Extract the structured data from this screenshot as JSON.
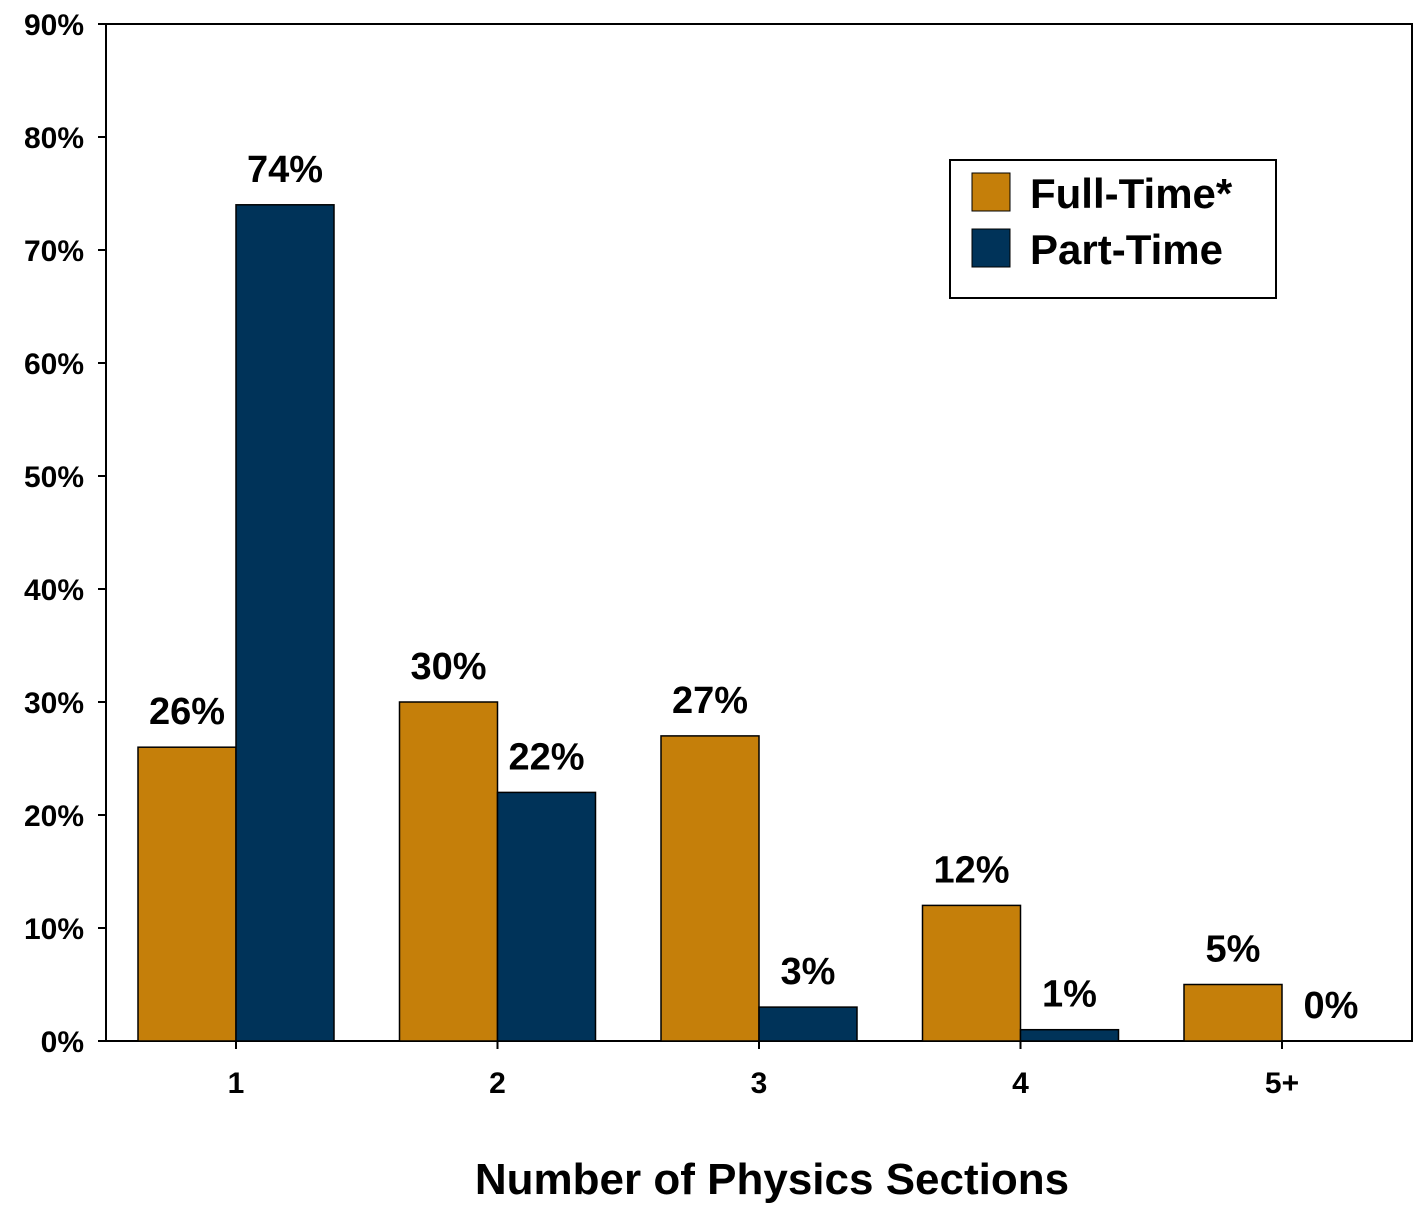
{
  "chart_data": {
    "type": "bar",
    "title": "",
    "xlabel": "Number of Physics Sections",
    "ylabel": "",
    "ylim": [
      0,
      90
    ],
    "y_ticks": [
      0,
      10,
      20,
      30,
      40,
      50,
      60,
      70,
      80,
      90
    ],
    "y_tick_suffix": "%",
    "categories": [
      "1",
      "2",
      "3",
      "4",
      "5+"
    ],
    "series": [
      {
        "name": "Full-Time*",
        "color": "#c57f0a",
        "values": [
          26,
          30,
          27,
          12,
          5
        ],
        "labels": [
          "26%",
          "30%",
          "27%",
          "12%",
          "5%"
        ]
      },
      {
        "name": "Part-Time",
        "color": "#003359",
        "values": [
          74,
          22,
          3,
          1,
          0
        ],
        "labels": [
          "74%",
          "22%",
          "3%",
          "1%",
          "0%"
        ]
      }
    ],
    "legend_position": "top-right",
    "grid": false
  }
}
